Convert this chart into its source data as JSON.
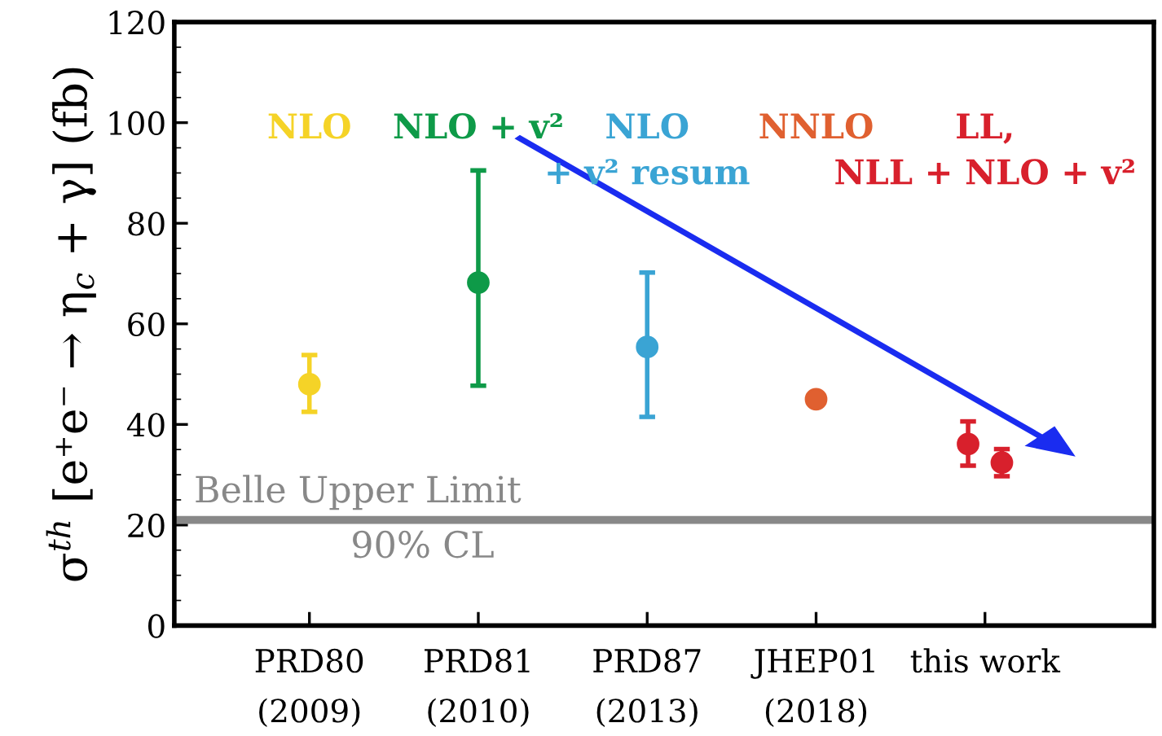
{
  "chart_data": {
    "type": "scatter",
    "ylabel": "σ$^{th}$ [e⁺e⁻ → η$_{c}$ + γ] (fb)",
    "categories": [
      "PRD80\n(2009)",
      "PRD81\n(2010)",
      "PRD87\n(2013)",
      "JHEP01\n(2018)",
      "this work"
    ],
    "ylim": [
      0,
      120
    ],
    "yticks": [
      0,
      20,
      40,
      60,
      80,
      100,
      120
    ],
    "grid": false,
    "legend": false,
    "marker": "circle",
    "series": [
      {
        "name": "NLO",
        "color": "#f5d327",
        "values": [
          48.0,
          null,
          null,
          null,
          null
        ],
        "errors": [
          [
            42.5,
            53.8
          ],
          null,
          null,
          null,
          null
        ]
      },
      {
        "name": "NLO + v²",
        "color": "#0e9a48",
        "values": [
          null,
          68.2,
          null,
          null,
          null
        ],
        "errors": [
          null,
          [
            47.7,
            90.5
          ],
          null,
          null,
          null
        ]
      },
      {
        "name": "NLO\n+ v² resum",
        "color": "#3aa4d4",
        "values": [
          null,
          null,
          55.4,
          null,
          null
        ],
        "errors": [
          null,
          null,
          [
            41.5,
            70.2
          ],
          null,
          null
        ]
      },
      {
        "name": "NNLO",
        "color": "#e06030",
        "values": [
          null,
          null,
          null,
          45.0,
          null
        ],
        "errors": [
          null,
          null,
          null,
          null,
          null
        ]
      },
      {
        "name": "LL,\nNLL + NLO + v²",
        "color": "#d8202c",
        "values": [
          null,
          null,
          null,
          null,
          36.1
        ],
        "errors": [
          null,
          null,
          null,
          null,
          [
            31.8,
            40.6
          ]
        ]
      },
      {
        "color": "#d8202c",
        "values": [
          null,
          null,
          null,
          null,
          32.4
        ],
        "errors": [
          null,
          null,
          null,
          null,
          [
            29.7,
            35.1
          ]
        ]
      }
    ],
    "ref_lines": [
      {
        "axis": "y",
        "value": 21.0,
        "label": "Belle Upper Limit",
        "color": "#888888"
      }
    ],
    "annotations": [
      "90% CL"
    ]
  }
}
